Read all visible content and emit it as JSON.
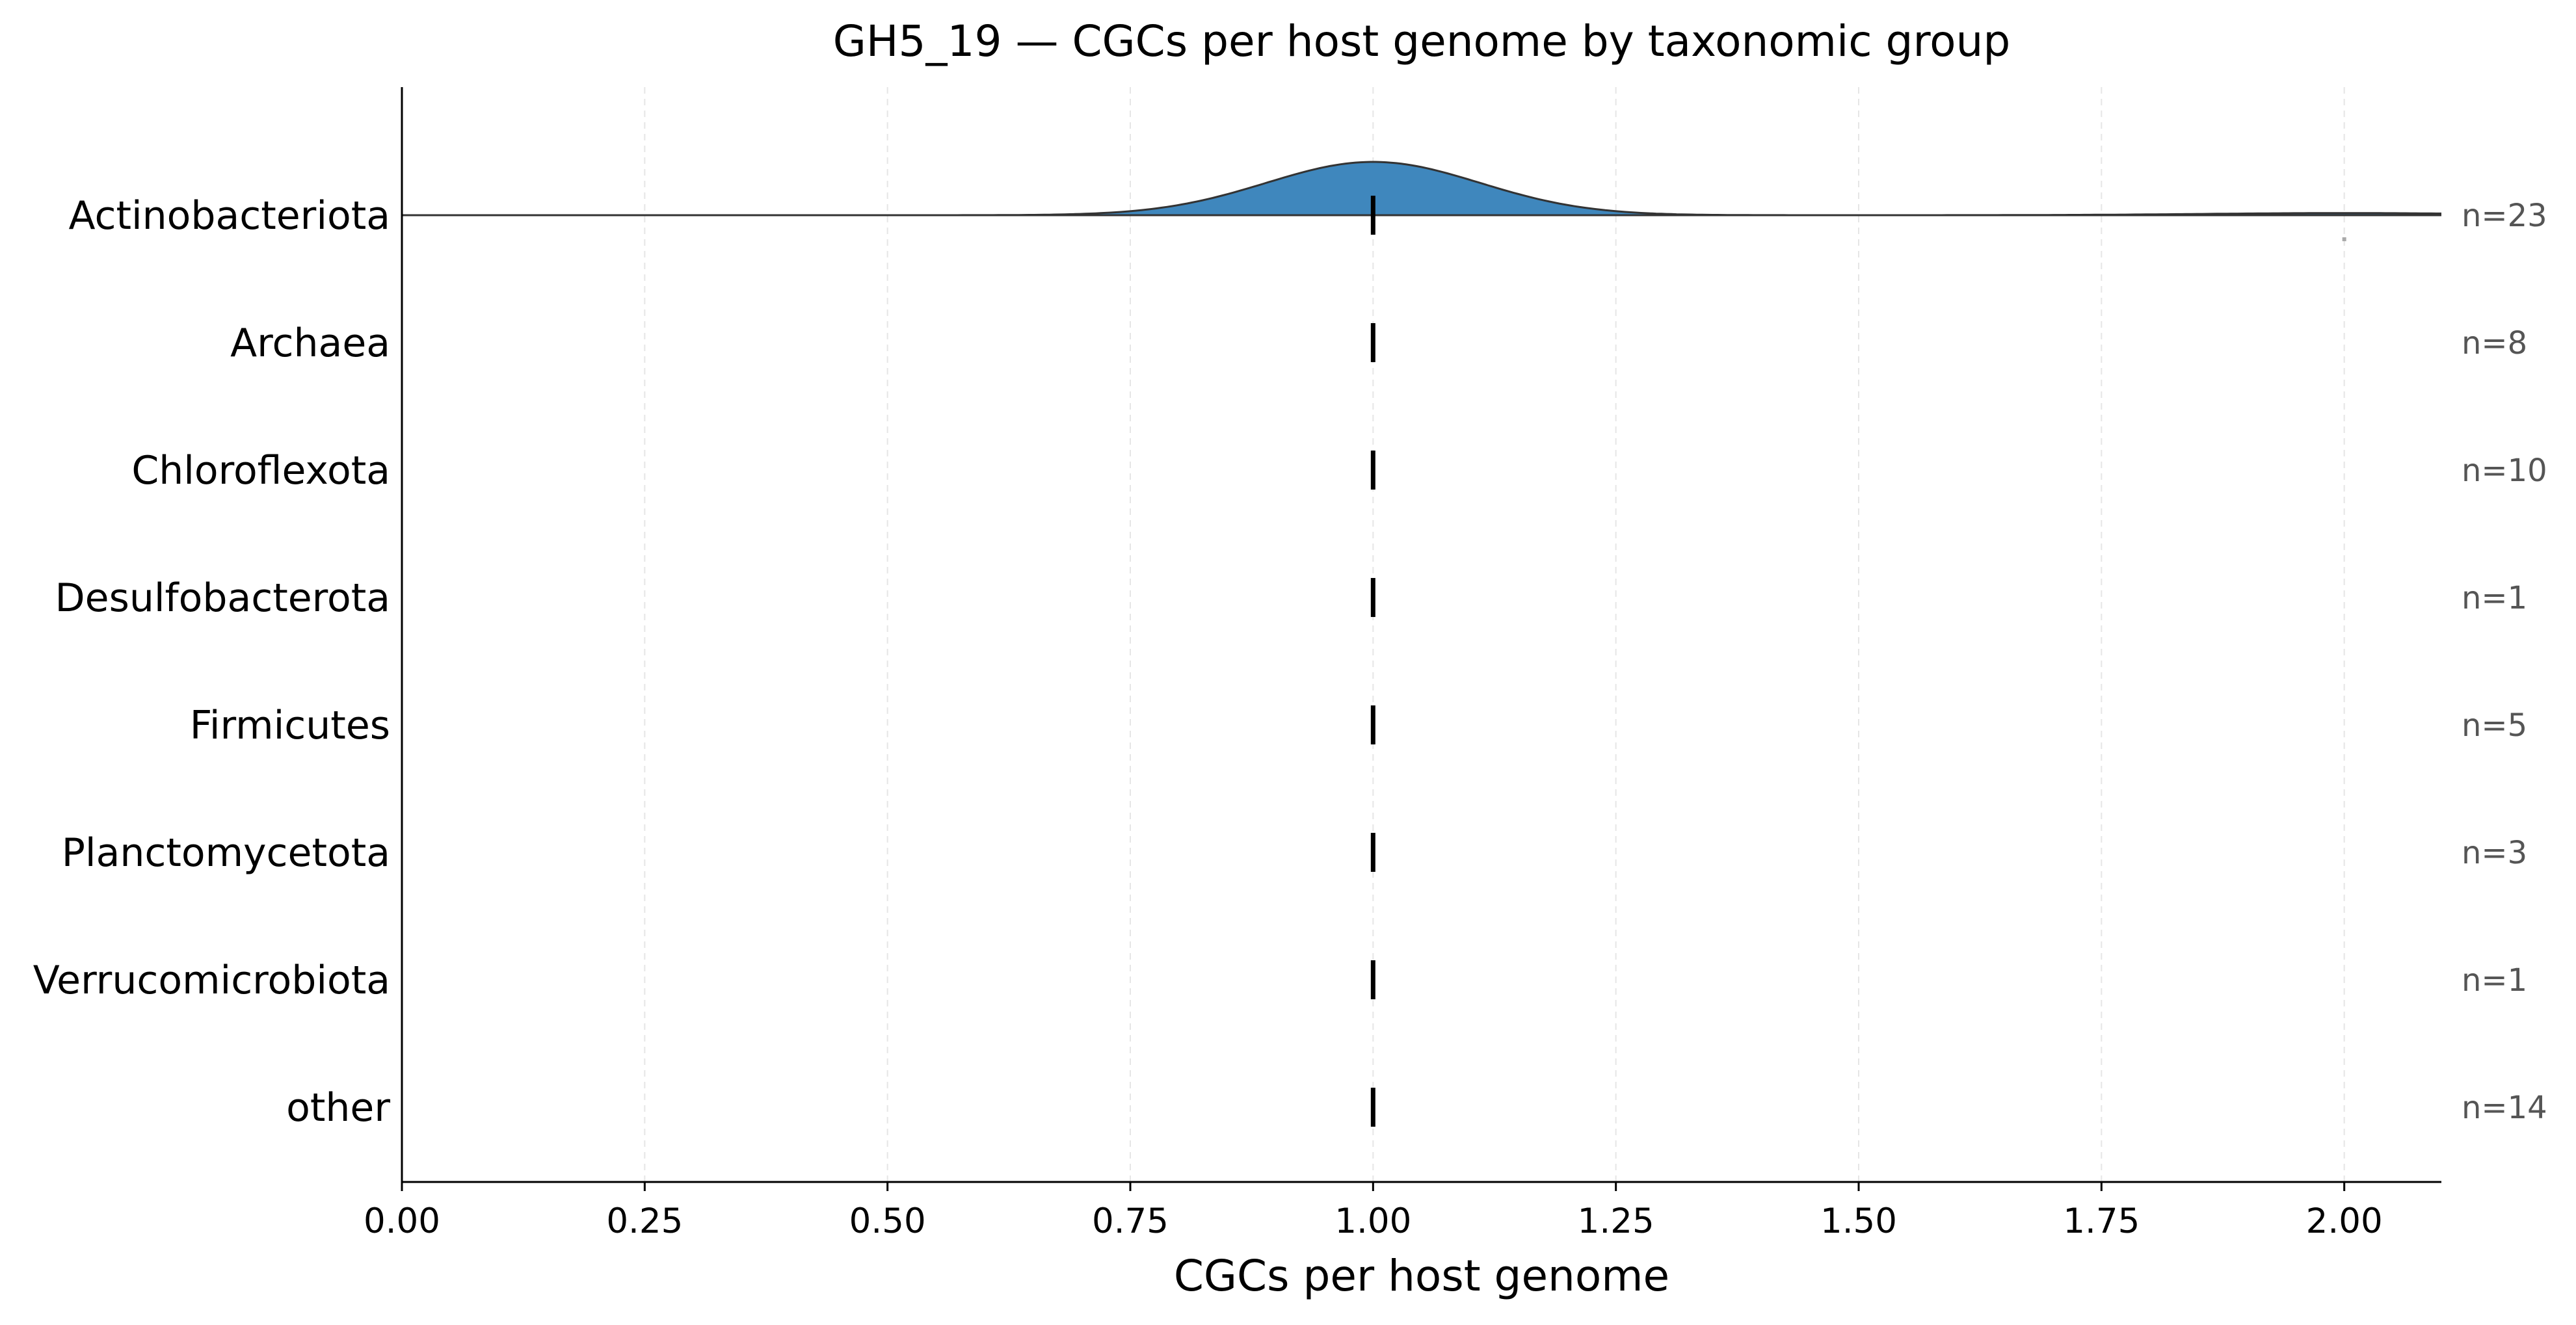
{
  "chart_data": {
    "type": "ridgeline",
    "title": "GH5_19 — CGCs per host genome by taxonomic group",
    "xlabel": "CGCs per host genome",
    "ylabel": "",
    "xlim": [
      0.0,
      2.1
    ],
    "x_ticks": [
      0.0,
      0.25,
      0.5,
      0.75,
      1.0,
      1.25,
      1.5,
      1.75,
      2.0
    ],
    "x_tick_labels": [
      "0.00",
      "0.25",
      "0.50",
      "0.75",
      "1.00",
      "1.25",
      "1.50",
      "1.75",
      "2.00"
    ],
    "grid": "x-dashed",
    "fill_color": "#3f87bd",
    "outline_color": "#333333",
    "median_color": "#000000",
    "categories": [
      {
        "name": "Actinobacteriota",
        "n_label": "n=23",
        "n": 23,
        "median": 1.0,
        "density": {
          "peak": 1.0,
          "sd": 0.11,
          "secondary_peak": 2.0,
          "secondary_rel_height": 0.04
        },
        "outlier_points": [
          2.0
        ]
      },
      {
        "name": "Archaea",
        "n_label": "n=8",
        "n": 8,
        "median": 1.0
      },
      {
        "name": "Chloroflexota",
        "n_label": "n=10",
        "n": 10,
        "median": 1.0
      },
      {
        "name": "Desulfobacterota",
        "n_label": "n=1",
        "n": 1,
        "median": 1.0
      },
      {
        "name": "Firmicutes",
        "n_label": "n=5",
        "n": 5,
        "median": 1.0
      },
      {
        "name": "Planctomycetota",
        "n_label": "n=3",
        "n": 3,
        "median": 1.0
      },
      {
        "name": "Verrucomicrobiota",
        "n_label": "n=1",
        "n": 1,
        "median": 1.0
      },
      {
        "name": "other",
        "n_label": "n=14",
        "n": 14,
        "median": 1.0
      }
    ]
  }
}
